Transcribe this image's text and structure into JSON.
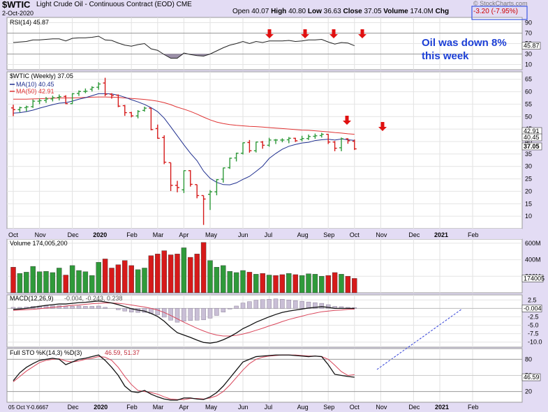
{
  "header": {
    "symbol": "$WTIC",
    "description": "Light Crude Oil - Continuous Contract (EOD) CME",
    "date": "2-Oct-2020",
    "open_label": "Open",
    "open": "40.07",
    "high_label": "High",
    "high": "40.80",
    "low_label": "Low",
    "low": "36.63",
    "close_label": "Close",
    "close": "37.05",
    "volume_label": "Volume",
    "volume": "174.0M",
    "chg_label": "Chg",
    "chg": "-3.20 (-7.95%)",
    "credit": "© StockCharts.com"
  },
  "annotation": {
    "line1": "Oil was down 8%",
    "line2": "this week"
  },
  "legends": {
    "rsi": "RSI(14) 45.87",
    "price": "$WTIC (Weekly) 37.05",
    "ma10": "MA(10) 40.45",
    "ma50": "MA(50) 42.91",
    "volume": "Volume 174,005,200",
    "macd_name": "MACD(12,26,9)",
    "macd_vals": "-0.004, -0.243, 0.238",
    "sto_name": "Full STO %K(14,3) %D(3)",
    "sto_vals": "46.59, 51.37",
    "footer": "05 Oct Y-0.6667"
  },
  "badges": {
    "rsi": "45.87",
    "ma50": "42.91",
    "ma10": "40.45",
    "close": "37.05",
    "volume": "174005",
    "macd": "-0.004",
    "sto": "46.59"
  },
  "axes": {
    "rsi_ticks": [
      "90",
      "70",
      "50",
      "30",
      "10"
    ],
    "price_ticks": [
      "65",
      "60",
      "55",
      "50",
      "45",
      "40",
      "35",
      "30",
      "25",
      "20",
      "15",
      "10"
    ],
    "volume_ticks": [
      "600M",
      "400M",
      "200M"
    ],
    "macd_ticks": [
      "2.5",
      "0.0",
      "-2.5",
      "-5.0",
      "-7.5",
      "-10.0"
    ],
    "sto_ticks": [
      "80",
      "50",
      "20"
    ],
    "months_price": [
      "Oct",
      "Nov",
      "Dec",
      "2020",
      "Feb",
      "Mar",
      "Apr",
      "May",
      "Jun",
      "Jul",
      "Aug",
      "Sep",
      "Oct",
      "Nov",
      "Dec",
      "2021",
      "Feb"
    ],
    "months_bottom": [
      "Dec",
      "2020",
      "Feb",
      "Mar",
      "Apr",
      "May",
      "Jun",
      "Jul",
      "Aug",
      "Sep",
      "Oct",
      "Nov",
      "Dec",
      "2021",
      "Feb"
    ]
  },
  "colors": {
    "up": "#2f9a3a",
    "down": "#d61a1a",
    "ma10": "#1f2f8f",
    "ma50": "#e03434",
    "annotation": "#1c3fd6"
  },
  "chart_data": {
    "type": "line",
    "title": "$WTIC Light Crude Oil - Continuous Contract (EOD) CME",
    "x_weeks": [
      "2019-10-04",
      "2019-10-11",
      "2019-10-18",
      "2019-10-25",
      "2019-11-01",
      "2019-11-08",
      "2019-11-15",
      "2019-11-22",
      "2019-11-29",
      "2019-12-06",
      "2019-12-13",
      "2019-12-20",
      "2019-12-27",
      "2020-01-03",
      "2020-01-10",
      "2020-01-17",
      "2020-01-24",
      "2020-01-31",
      "2020-02-07",
      "2020-02-14",
      "2020-02-21",
      "2020-02-28",
      "2020-03-06",
      "2020-03-13",
      "2020-03-20",
      "2020-03-27",
      "2020-04-03",
      "2020-04-10",
      "2020-04-17",
      "2020-04-24",
      "2020-05-01",
      "2020-05-08",
      "2020-05-15",
      "2020-05-22",
      "2020-05-29",
      "2020-06-05",
      "2020-06-12",
      "2020-06-19",
      "2020-06-26",
      "2020-07-03",
      "2020-07-10",
      "2020-07-17",
      "2020-07-24",
      "2020-07-31",
      "2020-08-07",
      "2020-08-14",
      "2020-08-21",
      "2020-08-28",
      "2020-09-04",
      "2020-09-11",
      "2020-09-18",
      "2020-09-25",
      "2020-10-02"
    ],
    "price": {
      "open": [
        53.5,
        52.8,
        53.6,
        54.0,
        56.2,
        56.5,
        57.1,
        57.7,
        58.1,
        55.2,
        59.3,
        60.1,
        61.0,
        61.8,
        63.5,
        59.0,
        58.6,
        54.4,
        51.6,
        50.3,
        52.5,
        53.4,
        45.2,
        41.6,
        31.5,
        22.4,
        20.6,
        28.3,
        22.7,
        18.3,
        18.8,
        19.8,
        24.9,
        29.5,
        33.4,
        35.3,
        39.6,
        36.3,
        39.8,
        38.5,
        40.6,
        40.6,
        40.7,
        41.3,
        40.8,
        41.2,
        42.1,
        42.4,
        42.9,
        39.8,
        37.5,
        41.1,
        40.1
      ],
      "high": [
        54.8,
        54.0,
        54.4,
        56.9,
        57.3,
        57.9,
        58.4,
        58.9,
        58.6,
        59.4,
        60.5,
        61.3,
        62.2,
        63.8,
        65.6,
        59.4,
        58.9,
        54.7,
        51.9,
        52.6,
        54.0,
        53.4,
        46.8,
        42.5,
        31.5,
        24.2,
        28.4,
        28.5,
        22.7,
        18.3,
        20.5,
        24.9,
        29.5,
        33.5,
        35.5,
        39.6,
        40.6,
        39.9,
        40.2,
        41.5,
        41.0,
        41.3,
        41.8,
        41.5,
        42.3,
        42.8,
        43.2,
        43.5,
        43.0,
        40.2,
        41.6,
        41.3,
        40.8
      ],
      "low": [
        50.2,
        51.8,
        52.1,
        53.5,
        55.0,
        55.5,
        56.1,
        56.5,
        55.0,
        55.0,
        58.3,
        59.4,
        60.1,
        60.8,
        58.2,
        57.2,
        53.8,
        50.3,
        49.7,
        49.3,
        52.0,
        44.5,
        41.1,
        30.9,
        20.1,
        19.6,
        19.3,
        21.9,
        17.2,
        6.5,
        12.5,
        18.4,
        23.5,
        29.0,
        32.0,
        34.8,
        35.5,
        35.6,
        37.1,
        37.9,
        39.0,
        39.7,
        39.3,
        39.8,
        40.1,
        40.6,
        41.1,
        41.6,
        39.0,
        36.1,
        36.1,
        39.1,
        36.6
      ],
      "close": [
        52.8,
        53.6,
        53.9,
        56.2,
        56.4,
        57.1,
        57.6,
        58.0,
        55.2,
        59.2,
        60.1,
        60.2,
        61.7,
        63.1,
        59.0,
        58.5,
        54.2,
        51.6,
        50.3,
        52.1,
        53.4,
        44.8,
        41.3,
        31.7,
        22.4,
        21.5,
        28.3,
        22.8,
        18.3,
        16.9,
        19.8,
        24.7,
        29.4,
        33.3,
        35.3,
        39.5,
        36.3,
        39.8,
        38.5,
        40.6,
        40.6,
        40.6,
        41.3,
        40.3,
        41.2,
        42.0,
        42.3,
        42.9,
        39.8,
        37.3,
        41.1,
        40.3,
        37.05
      ]
    },
    "ma10": [
      51.4,
      51.6,
      52.0,
      52.6,
      53.4,
      54.1,
      54.8,
      55.4,
      55.6,
      56.2,
      57.0,
      57.6,
      58.4,
      59.2,
      59.2,
      59.1,
      58.6,
      57.8,
      56.8,
      55.9,
      54.9,
      53.6,
      52.0,
      49.4,
      45.9,
      42.3,
      38.7,
      35.3,
      32.3,
      28.1,
      25.2,
      23.6,
      22.7,
      22.6,
      23.4,
      24.8,
      26.0,
      28.0,
      30.1,
      33.2,
      35.2,
      36.9,
      38.1,
      38.8,
      39.4,
      39.7,
      40.4,
      40.7,
      40.9,
      40.6,
      41.0,
      40.7,
      40.45
    ],
    "ma50": [
      57.0,
      57.0,
      57.0,
      57.1,
      57.2,
      57.3,
      57.4,
      57.5,
      57.5,
      57.5,
      57.6,
      57.7,
      57.8,
      57.9,
      57.9,
      57.8,
      57.7,
      57.5,
      57.3,
      57.1,
      56.9,
      56.6,
      56.2,
      55.6,
      54.8,
      53.8,
      53.0,
      52.1,
      51.0,
      49.8,
      48.7,
      47.8,
      47.2,
      46.8,
      46.5,
      46.3,
      46.1,
      46.0,
      45.8,
      45.6,
      45.4,
      45.2,
      45.0,
      44.8,
      44.6,
      44.5,
      44.3,
      44.1,
      43.9,
      43.6,
      43.4,
      43.1,
      42.91
    ],
    "rsi": [
      52,
      53,
      54,
      57,
      57,
      58,
      59,
      59,
      55,
      60,
      61,
      61,
      62,
      64,
      57,
      56,
      51,
      47,
      45,
      48,
      50,
      40,
      37,
      29,
      22,
      22,
      32,
      29,
      27,
      26,
      30,
      36,
      42,
      47,
      50,
      54,
      50,
      54,
      52,
      55,
      55,
      55,
      56,
      54,
      55,
      57,
      57,
      58,
      53,
      49,
      52,
      51,
      45.87
    ],
    "volume_millions": [
      310,
      235,
      250,
      320,
      255,
      260,
      245,
      300,
      215,
      330,
      270,
      255,
      210,
      370,
      410,
      300,
      340,
      390,
      330,
      280,
      300,
      450,
      470,
      510,
      460,
      470,
      545,
      430,
      470,
      610,
      390,
      310,
      330,
      260,
      245,
      270,
      250,
      225,
      235,
      215,
      210,
      220,
      235,
      220,
      210,
      230,
      225,
      200,
      210,
      245,
      225,
      200,
      174
    ],
    "volume_up": [
      false,
      true,
      true,
      true,
      true,
      true,
      true,
      true,
      false,
      true,
      true,
      true,
      true,
      true,
      false,
      false,
      false,
      false,
      false,
      true,
      true,
      false,
      false,
      false,
      false,
      false,
      true,
      false,
      false,
      false,
      true,
      true,
      true,
      true,
      true,
      true,
      false,
      true,
      false,
      true,
      false,
      false,
      true,
      false,
      true,
      true,
      true,
      true,
      false,
      false,
      true,
      false,
      false
    ],
    "macd": {
      "macd": [
        -0.3,
        -0.2,
        0.0,
        0.3,
        0.6,
        0.9,
        1.1,
        1.3,
        1.3,
        1.5,
        1.7,
        1.8,
        2.0,
        2.2,
        1.9,
        1.6,
        1.1,
        0.5,
        -0.1,
        -0.5,
        -0.8,
        -1.5,
        -2.4,
        -3.8,
        -5.6,
        -7.2,
        -7.9,
        -8.6,
        -9.4,
        -10.1,
        -10.3,
        -10.0,
        -9.3,
        -8.4,
        -7.3,
        -6.0,
        -5.1,
        -4.1,
        -3.3,
        -2.5,
        -1.8,
        -1.2,
        -0.8,
        -0.5,
        -0.2,
        0.1,
        0.3,
        0.5,
        0.3,
        0.0,
        0.0,
        0.0,
        -0.004
      ],
      "signal": [
        -0.6,
        -0.5,
        -0.4,
        -0.3,
        -0.1,
        0.1,
        0.3,
        0.5,
        0.7,
        0.9,
        1.0,
        1.2,
        1.4,
        1.5,
        1.6,
        1.6,
        1.5,
        1.3,
        1.0,
        0.7,
        0.4,
        0.0,
        -0.5,
        -1.2,
        -2.1,
        -3.1,
        -4.1,
        -5.0,
        -5.9,
        -6.7,
        -7.4,
        -7.9,
        -8.2,
        -8.2,
        -8.0,
        -7.6,
        -7.1,
        -6.5,
        -5.9,
        -5.2,
        -4.6,
        -3.9,
        -3.3,
        -2.8,
        -2.3,
        -1.8,
        -1.4,
        -1.0,
        -0.8,
        -0.6,
        -0.5,
        -0.3,
        -0.243
      ],
      "histogram": [
        0.3,
        0.3,
        0.4,
        0.6,
        0.7,
        0.8,
        0.8,
        0.8,
        0.6,
        0.6,
        0.7,
        0.6,
        0.6,
        0.7,
        0.3,
        0.0,
        -0.4,
        -0.8,
        -1.1,
        -1.2,
        -1.2,
        -1.5,
        -1.9,
        -2.6,
        -3.5,
        -4.1,
        -3.8,
        -3.6,
        -3.5,
        -3.4,
        -2.9,
        -2.1,
        -1.1,
        -0.2,
        0.7,
        1.6,
        2.0,
        2.4,
        2.6,
        2.7,
        2.8,
        2.7,
        2.5,
        2.3,
        2.1,
        1.9,
        1.7,
        1.5,
        1.1,
        0.6,
        0.5,
        0.3,
        0.238
      ]
    },
    "stochastic": {
      "k": [
        40,
        55,
        65,
        72,
        78,
        80,
        82,
        80,
        70,
        75,
        80,
        82,
        85,
        88,
        78,
        65,
        50,
        30,
        20,
        18,
        22,
        15,
        10,
        6,
        4,
        4,
        8,
        8,
        6,
        5,
        10,
        18,
        30,
        45,
        60,
        75,
        80,
        85,
        86,
        87,
        88,
        88,
        88,
        87,
        86,
        85,
        86,
        85,
        70,
        52,
        50,
        48,
        46.59
      ],
      "d": [
        38,
        48,
        58,
        66,
        74,
        78,
        80,
        81,
        77,
        75,
        77,
        80,
        82,
        85,
        84,
        78,
        65,
        48,
        33,
        22,
        20,
        18,
        15,
        10,
        6,
        5,
        5,
        7,
        7,
        6,
        8,
        12,
        20,
        32,
        46,
        60,
        72,
        80,
        84,
        86,
        87,
        88,
        88,
        88,
        87,
        86,
        86,
        85,
        80,
        69,
        57,
        50,
        51.37
      ]
    },
    "rsi_ylim": [
      0,
      100
    ],
    "price_ylim": [
      5,
      68
    ],
    "volume_ylim": [
      0,
      650
    ],
    "macd_ylim": [
      -11.5,
      4
    ],
    "sto_ylim": [
      0,
      100
    ]
  }
}
